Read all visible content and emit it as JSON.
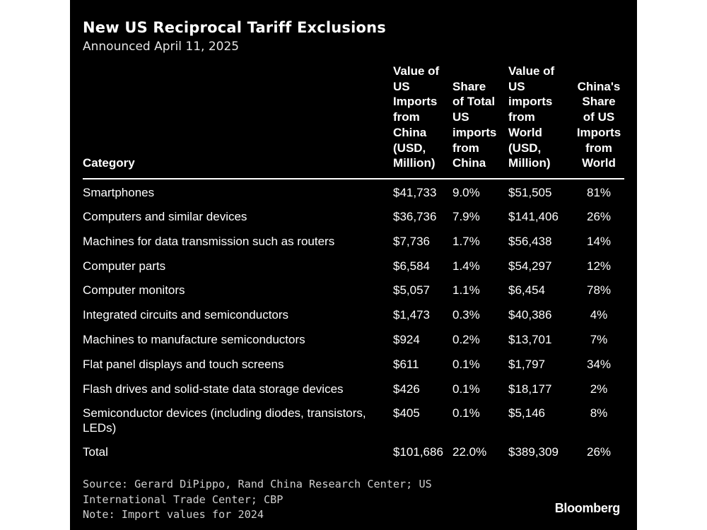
{
  "chart_data": {
    "type": "table",
    "title": "New US Reciprocal Tariff Exclusions",
    "subtitle": "Announced April 11, 2025",
    "columns": [
      {
        "key": "category",
        "lines": [
          "Category"
        ]
      },
      {
        "key": "china_value",
        "lines": [
          "Value of",
          "US",
          "Imports",
          "from",
          "China",
          "(USD,",
          "Million)"
        ]
      },
      {
        "key": "china_share",
        "lines": [
          "Share",
          "of Total",
          "US",
          "imports",
          "from",
          "China"
        ]
      },
      {
        "key": "world_value",
        "lines": [
          "Value of",
          "US",
          "imports",
          "from",
          "World",
          "(USD,",
          "Million)"
        ]
      },
      {
        "key": "china_share_world",
        "lines": [
          "China's",
          "Share",
          "of US",
          "Imports",
          "from",
          "World"
        ]
      }
    ],
    "rows": [
      {
        "category": "Smartphones",
        "china_value": "$41,733",
        "china_share": "9.0%",
        "world_value": "$51,505",
        "china_share_world": "81%"
      },
      {
        "category": "Computers and similar devices",
        "china_value": "$36,736",
        "china_share": "7.9%",
        "world_value": "$141,406",
        "china_share_world": "26%"
      },
      {
        "category": "Machines for data transmission such as routers",
        "china_value": "$7,736",
        "china_share": "1.7%",
        "world_value": "$56,438",
        "china_share_world": "14%"
      },
      {
        "category": "Computer parts",
        "china_value": "$6,584",
        "china_share": "1.4%",
        "world_value": "$54,297",
        "china_share_world": "12%"
      },
      {
        "category": "Computer monitors",
        "china_value": "$5,057",
        "china_share": "1.1%",
        "world_value": "$6,454",
        "china_share_world": "78%"
      },
      {
        "category": "Integrated circuits and semiconductors",
        "china_value": "$1,473",
        "china_share": "0.3%",
        "world_value": "$40,386",
        "china_share_world": "4%"
      },
      {
        "category": "Machines to manufacture semiconductors",
        "china_value": "$924",
        "china_share": "0.2%",
        "world_value": "$13,701",
        "china_share_world": "7%"
      },
      {
        "category": "Flat panel displays and touch screens",
        "china_value": "$611",
        "china_share": "0.1%",
        "world_value": "$1,797",
        "china_share_world": "34%"
      },
      {
        "category": "Flash drives and solid-state data storage devices",
        "china_value": "$426",
        "china_share": "0.1%",
        "world_value": "$18,177",
        "china_share_world": "2%"
      },
      {
        "category": "Semiconductor devices (including diodes, transistors, LEDs)",
        "china_value": "$405",
        "china_share": "0.1%",
        "world_value": "$5,146",
        "china_share_world": "8%"
      }
    ],
    "total": {
      "category": "Total",
      "china_value": "$101,686",
      "china_share": "22.0%",
      "world_value": "$389,309",
      "china_share_world": "26%"
    }
  },
  "footer": {
    "source": "Source: Gerard DiPippo, Rand China Research Center; US International Trade Center; CBP",
    "note": "Note: Import values for 2024"
  },
  "brand": {
    "logo_text": "Bloomberg"
  }
}
